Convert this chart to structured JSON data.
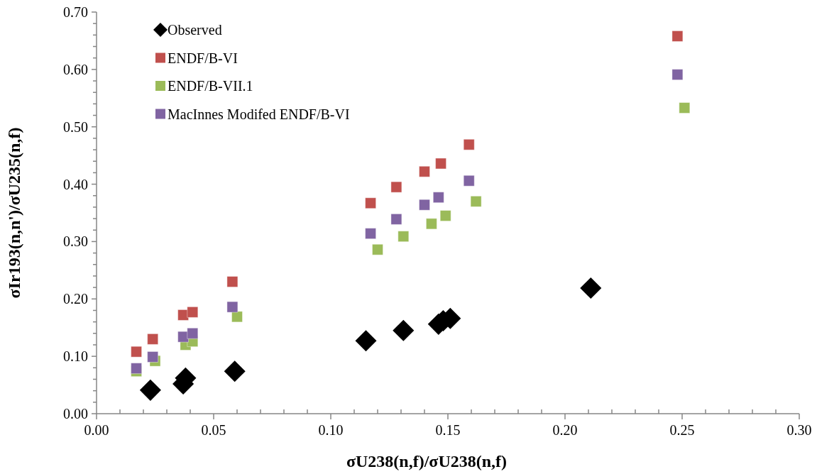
{
  "chart_data": {
    "type": "scatter",
    "xlabel": "σU238(n,f)/σU238(n,f)",
    "ylabel": "σIr193(n,n')/σU235(n,f)",
    "legend": "top left",
    "xlim": [
      0,
      0.3
    ],
    "ylim": [
      0,
      0.7
    ],
    "xticks": [
      {
        "value": 0,
        "label": "0.00"
      },
      {
        "value": 0.01,
        "label": null
      },
      {
        "value": 0.02,
        "label": null
      },
      {
        "value": 0.03,
        "label": null
      },
      {
        "value": 0.04,
        "label": null
      },
      {
        "value": 0.05,
        "label": "0.05"
      },
      {
        "value": 0.06,
        "label": null
      },
      {
        "value": 0.07,
        "label": null
      },
      {
        "value": 0.08,
        "label": null
      },
      {
        "value": 0.09,
        "label": null
      },
      {
        "value": 0.1,
        "label": "0.10"
      },
      {
        "value": 0.11,
        "label": null
      },
      {
        "value": 0.12,
        "label": null
      },
      {
        "value": 0.13,
        "label": null
      },
      {
        "value": 0.14,
        "label": null
      },
      {
        "value": 0.15,
        "label": "0.15"
      },
      {
        "value": 0.16,
        "label": null
      },
      {
        "value": 0.17,
        "label": null
      },
      {
        "value": 0.18,
        "label": null
      },
      {
        "value": 0.19,
        "label": null
      },
      {
        "value": 0.2,
        "label": "0.20"
      },
      {
        "value": 0.21,
        "label": null
      },
      {
        "value": 0.22,
        "label": null
      },
      {
        "value": 0.23,
        "label": null
      },
      {
        "value": 0.24,
        "label": null
      },
      {
        "value": 0.25,
        "label": "0.25"
      },
      {
        "value": 0.26,
        "label": null
      },
      {
        "value": 0.27,
        "label": null
      },
      {
        "value": 0.28,
        "label": null
      },
      {
        "value": 0.29,
        "label": null
      },
      {
        "value": 0.3,
        "label": "0.30"
      }
    ],
    "yticks": [
      {
        "value": 0,
        "label": "0.00"
      },
      {
        "value": 0.02,
        "label": null
      },
      {
        "value": 0.04,
        "label": null
      },
      {
        "value": 0.06,
        "label": null
      },
      {
        "value": 0.08,
        "label": null
      },
      {
        "value": 0.1,
        "label": "0.10"
      },
      {
        "value": 0.12,
        "label": null
      },
      {
        "value": 0.14,
        "label": null
      },
      {
        "value": 0.16,
        "label": null
      },
      {
        "value": 0.18,
        "label": null
      },
      {
        "value": 0.2,
        "label": "0.20"
      },
      {
        "value": 0.22,
        "label": null
      },
      {
        "value": 0.24,
        "label": null
      },
      {
        "value": 0.26,
        "label": null
      },
      {
        "value": 0.28,
        "label": null
      },
      {
        "value": 0.3,
        "label": "0.30"
      },
      {
        "value": 0.32,
        "label": null
      },
      {
        "value": 0.34,
        "label": null
      },
      {
        "value": 0.36,
        "label": null
      },
      {
        "value": 0.38,
        "label": null
      },
      {
        "value": 0.4,
        "label": "0.40"
      },
      {
        "value": 0.42,
        "label": null
      },
      {
        "value": 0.44,
        "label": null
      },
      {
        "value": 0.46,
        "label": null
      },
      {
        "value": 0.48,
        "label": null
      },
      {
        "value": 0.5,
        "label": "0.50"
      },
      {
        "value": 0.52,
        "label": null
      },
      {
        "value": 0.54,
        "label": null
      },
      {
        "value": 0.56,
        "label": null
      },
      {
        "value": 0.58,
        "label": null
      },
      {
        "value": 0.6,
        "label": "0.60"
      },
      {
        "value": 0.62,
        "label": null
      },
      {
        "value": 0.64,
        "label": null
      },
      {
        "value": 0.66,
        "label": null
      },
      {
        "value": 0.68,
        "label": null
      },
      {
        "value": 0.7,
        "label": "0.70"
      }
    ],
    "series": [
      {
        "name": "Observed",
        "color": "#000000",
        "marker": "diamond",
        "x": [
          0.023,
          0.037,
          0.038,
          0.059,
          0.115,
          0.131,
          0.146,
          0.148,
          0.151,
          0.211
        ],
        "values": [
          0.041,
          0.052,
          0.062,
          0.074,
          0.127,
          0.145,
          0.156,
          0.162,
          0.166,
          0.219
        ]
      },
      {
        "name": "ENDF/B-VI",
        "color": "#c0504d",
        "marker": "square",
        "x": [
          0.017,
          0.024,
          0.037,
          0.041,
          0.058,
          0.117,
          0.128,
          0.14,
          0.147,
          0.159,
          0.248
        ],
        "values": [
          0.108,
          0.13,
          0.172,
          0.177,
          0.23,
          0.367,
          0.395,
          0.422,
          0.436,
          0.469,
          0.658
        ]
      },
      {
        "name": "ENDF/B-VII.1",
        "color": "#9bbb59",
        "marker": "square",
        "x": [
          0.017,
          0.025,
          0.038,
          0.041,
          0.06,
          0.12,
          0.131,
          0.143,
          0.149,
          0.162,
          0.251
        ],
        "values": [
          0.074,
          0.092,
          0.12,
          0.126,
          0.169,
          0.286,
          0.309,
          0.331,
          0.345,
          0.37,
          0.533
        ]
      },
      {
        "name": "MacInnes Modifed ENDF/B-VI",
        "color": "#8064a2",
        "marker": "square",
        "x": [
          0.017,
          0.024,
          0.037,
          0.041,
          0.058,
          0.117,
          0.128,
          0.14,
          0.146,
          0.159,
          0.248
        ],
        "values": [
          0.079,
          0.099,
          0.134,
          0.14,
          0.186,
          0.314,
          0.339,
          0.364,
          0.377,
          0.406,
          0.591
        ]
      }
    ]
  }
}
